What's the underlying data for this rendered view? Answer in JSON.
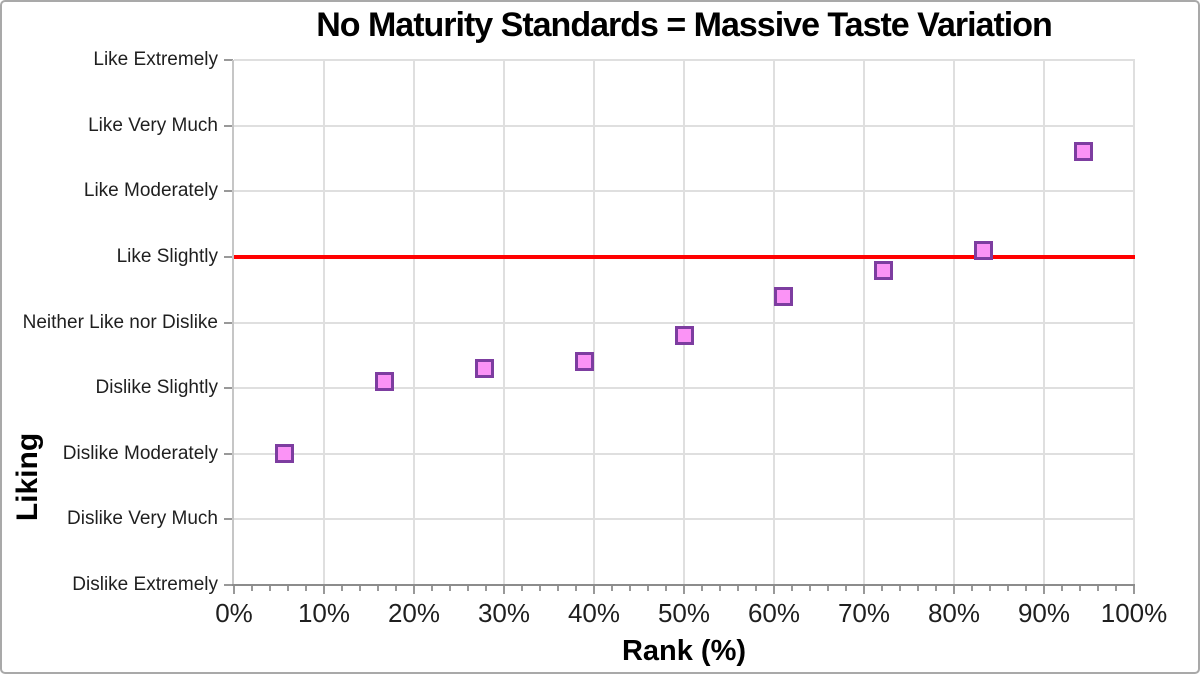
{
  "chart_data": {
    "type": "scatter",
    "title": "No Maturity Standards = Massive Taste Variation",
    "xlabel": "Rank (%)",
    "ylabel": "Liking",
    "x_axis": {
      "min": 0,
      "max": 100,
      "major_step": 10,
      "minor_step": 2,
      "tick_labels": [
        "0%",
        "10%",
        "20%",
        "30%",
        "40%",
        "50%",
        "60%",
        "70%",
        "80%",
        "90%",
        "100%"
      ]
    },
    "y_axis": {
      "categories_bottom_to_top": [
        "Dislike Extremely",
        "Dislike Very Much",
        "Dislike Moderately",
        "Dislike Slightly",
        "Neither Like nor Dislike",
        "Like Slightly",
        "Like Moderately",
        "Like Very Much",
        "Like Extremely"
      ],
      "numeric_scale_min": 1,
      "numeric_scale_max": 9,
      "grid": true
    },
    "points": [
      {
        "rank_pct": 5.6,
        "liking": 3.0
      },
      {
        "rank_pct": 16.7,
        "liking": 4.1
      },
      {
        "rank_pct": 27.8,
        "liking": 4.3
      },
      {
        "rank_pct": 38.9,
        "liking": 4.4
      },
      {
        "rank_pct": 50.0,
        "liking": 4.8
      },
      {
        "rank_pct": 61.1,
        "liking": 5.4
      },
      {
        "rank_pct": 72.2,
        "liking": 5.8
      },
      {
        "rank_pct": 83.3,
        "liking": 6.1
      },
      {
        "rank_pct": 94.4,
        "liking": 7.6
      }
    ],
    "reference_line": {
      "liking": 6.0,
      "at_category": "Like Slightly",
      "color": "#ff0000"
    },
    "marker": {
      "shape": "square",
      "fill": "#fb93f6",
      "border": "#7d3da0"
    },
    "colors": {
      "gridline": "#dfdfdf",
      "y_axis_line": "#c6c6c6",
      "x_axis_line": "#8c8c8c",
      "tick": "#999999",
      "label_text": "#1f1f1f",
      "title_text": "#000000"
    }
  }
}
